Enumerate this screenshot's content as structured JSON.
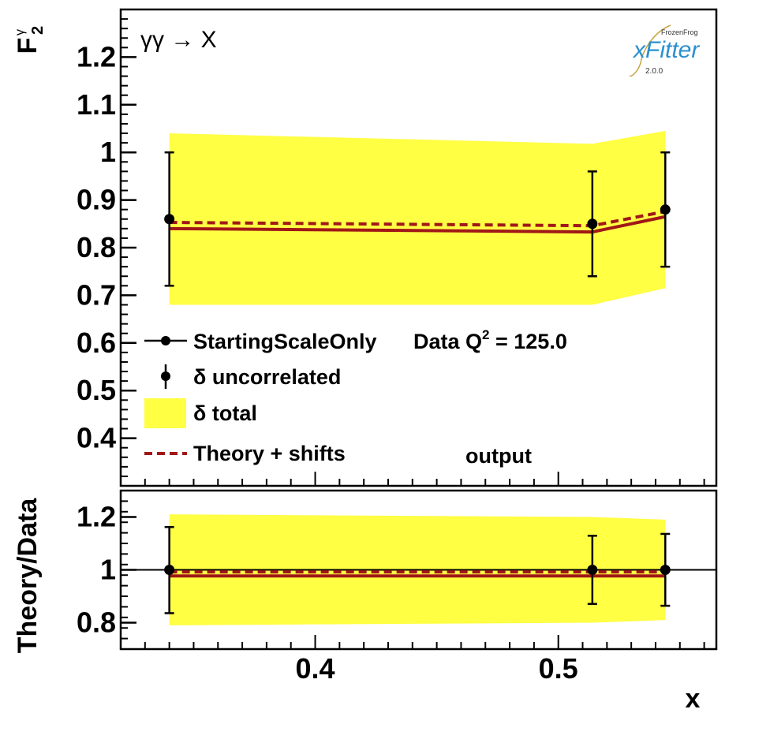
{
  "chart_data": [
    {
      "type": "line",
      "panel": "top",
      "ylabel": "F",
      "ylabel_sup": "γ",
      "ylabel_sub": "2",
      "annotation": "γγ → X",
      "annotation_right": "output",
      "ylim": [
        0.3,
        1.3
      ],
      "xlim": [
        0.32,
        0.565
      ],
      "yticks": [
        0.4,
        0.5,
        0.6,
        0.7,
        0.8,
        0.9,
        1,
        1.1,
        1.2
      ],
      "ytick_labels": [
        "0.4",
        "0.5",
        "0.6",
        "0.7",
        "0.8",
        "0.9",
        "1",
        "1.1",
        "1.2"
      ],
      "x": [
        0.34,
        0.514,
        0.544
      ],
      "data": {
        "y": [
          0.86,
          0.85,
          0.88
        ],
        "err_low": [
          0.72,
          0.74,
          0.76
        ],
        "err_high": [
          1.0,
          0.96,
          1.0
        ]
      },
      "band_total": {
        "x": [
          0.34,
          0.514,
          0.544
        ],
        "low": [
          0.68,
          0.68,
          0.715
        ],
        "high": [
          1.04,
          1.018,
          1.045
        ]
      },
      "theory": [
        0.84,
        0.833,
        0.865
      ],
      "theory_shifts": [
        0.853,
        0.846,
        0.876
      ],
      "legend": {
        "series_label": "StartingScaleOnly",
        "data_label": "Data Q",
        "data_q_sup": "2",
        "data_q_value": " = 125.0",
        "uncorrelated_label": "δ uncorrelated",
        "total_label": "δ total",
        "shifts_label": "Theory + shifts"
      },
      "logo": {
        "top": "FrozenFrog",
        "main": "xFitter",
        "version": "2.0.0"
      },
      "colors": {
        "band": "#ffff44",
        "theory": "#a01818",
        "data": "#000000"
      }
    },
    {
      "type": "line",
      "panel": "bottom",
      "ylabel": "Theory/Data",
      "xlabel": "x",
      "ylim": [
        0.7,
        1.3
      ],
      "xlim": [
        0.32,
        0.565
      ],
      "yticks": [
        0.8,
        1,
        1.2
      ],
      "ytick_labels": [
        "0.8",
        "1",
        "1.2"
      ],
      "xticks": [
        0.4,
        0.5
      ],
      "xtick_labels": [
        "0.4",
        "0.5"
      ],
      "x": [
        0.34,
        0.514,
        0.544
      ],
      "data": {
        "y": [
          1.0,
          1.0,
          1.0
        ],
        "err_low": [
          0.836,
          0.871,
          0.864
        ],
        "err_high": [
          1.162,
          1.129,
          1.136
        ]
      },
      "band_total": {
        "x": [
          0.34,
          0.514,
          0.544
        ],
        "low": [
          0.79,
          0.8,
          0.81
        ],
        "high": [
          1.21,
          1.2,
          1.19
        ]
      },
      "theory": [
        0.977,
        0.977,
        0.977
      ],
      "theory_shifts": [
        0.992,
        0.992,
        0.992
      ],
      "reference_line": 1,
      "colors": {
        "band": "#ffff44",
        "theory": "#a01818",
        "data": "#000000"
      }
    }
  ]
}
